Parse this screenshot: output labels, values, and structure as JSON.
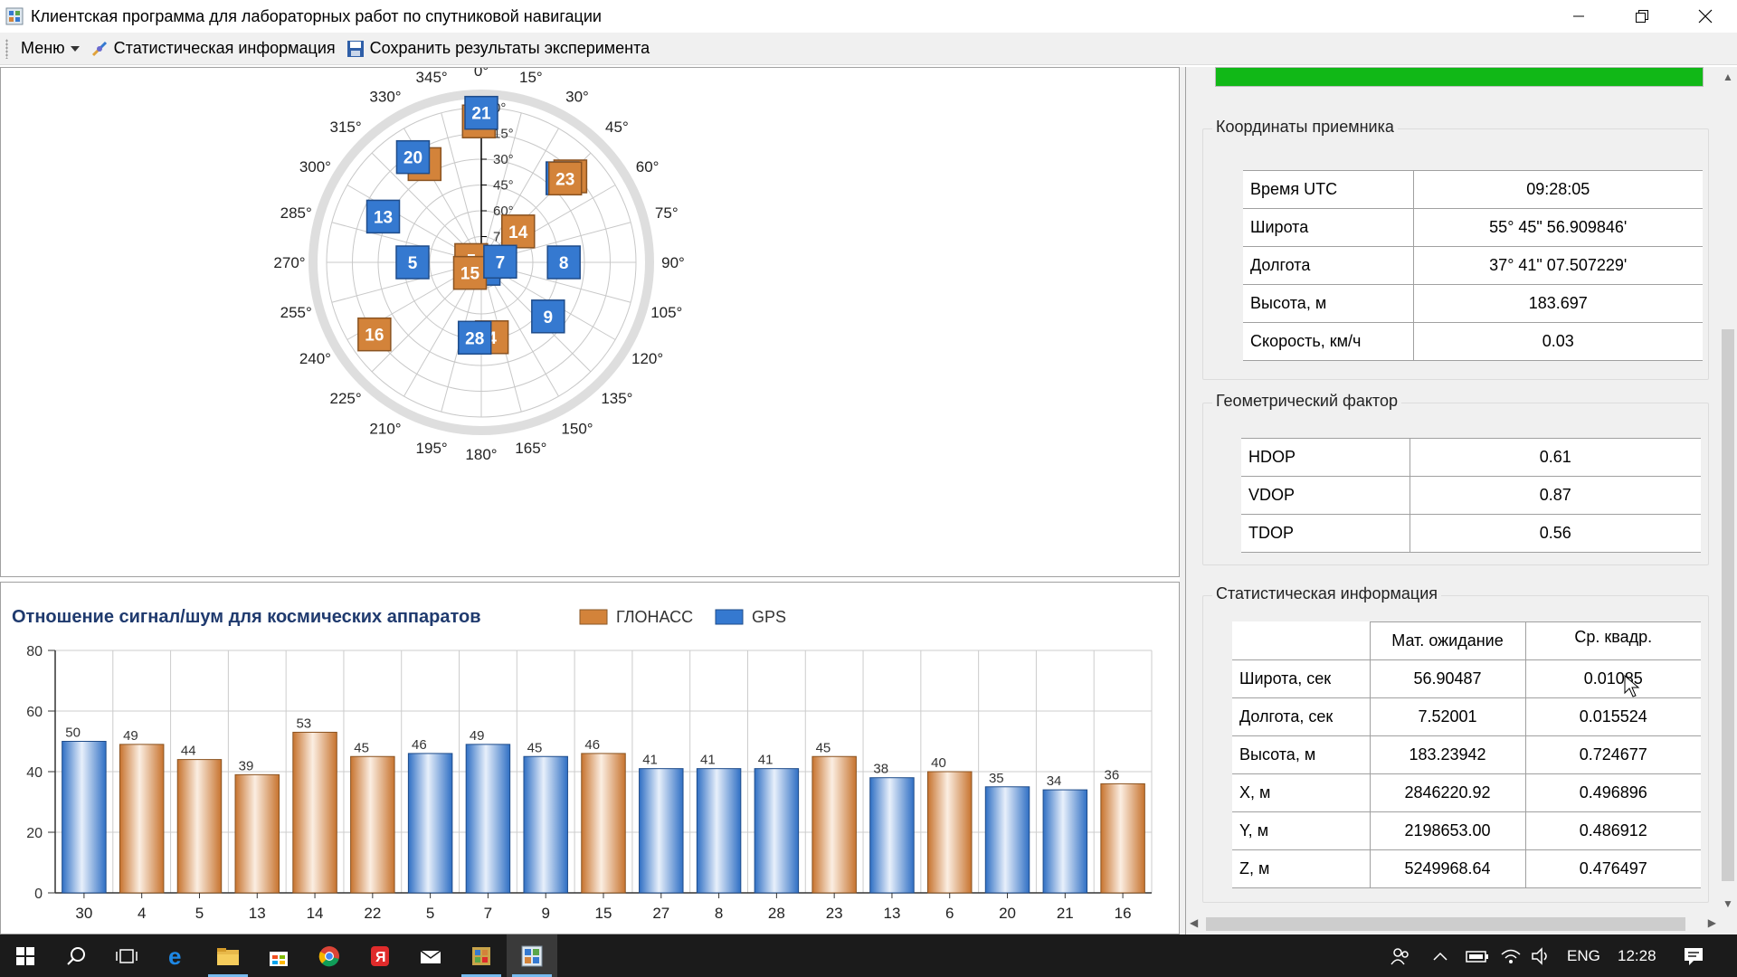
{
  "window": {
    "title": "Клиентская программа для лабораторных работ по спутниковой навигации"
  },
  "toolbar": {
    "menu_label": "Меню",
    "stats_label": "Статистическая информация",
    "save_label": "Сохранить результаты эксперимента"
  },
  "skyplot": {
    "azimuth_labels": [
      "0°",
      "15°",
      "30°",
      "45°",
      "60°",
      "75°",
      "90°",
      "105°",
      "120°",
      "135°",
      "150°",
      "165°",
      "180°",
      "195°",
      "210°",
      "225°",
      "240°",
      "255°",
      "270°",
      "285°",
      "300°",
      "315°",
      "330°",
      "345°"
    ],
    "elevation_labels": [
      "0°",
      "15°",
      "30°",
      "45°",
      "60°",
      "75°",
      "90°"
    ],
    "satellites": [
      {
        "id": "22",
        "system": "glonass",
        "az": 359,
        "el": 8
      },
      {
        "id": "21",
        "system": "gps",
        "az": 0,
        "el": 3
      },
      {
        "id": "6",
        "system": "glonass",
        "az": 330,
        "el": 24
      },
      {
        "id": "20",
        "system": "gps",
        "az": 327,
        "el": 17
      },
      {
        "id": "3",
        "system": "glonass",
        "az": 46,
        "el": 18
      },
      {
        "id": "23",
        "system": "gps",
        "az": 44,
        "el": 22
      },
      {
        "id": "23",
        "system": "glonass",
        "az": 45,
        "el": 21
      },
      {
        "id": "13",
        "system": "gps",
        "az": 295,
        "el": 27
      },
      {
        "id": "14",
        "system": "glonass",
        "az": 50,
        "el": 62
      },
      {
        "id": "5",
        "system": "gps",
        "az": 270,
        "el": 50
      },
      {
        "id": "0",
        "system": "gps",
        "az": 160,
        "el": 86
      },
      {
        "id": "5",
        "system": "glonass",
        "az": 283,
        "el": 84
      },
      {
        "id": "15",
        "system": "glonass",
        "az": 227,
        "el": 81
      },
      {
        "id": "7",
        "system": "gps",
        "az": 88,
        "el": 79
      },
      {
        "id": "8",
        "system": "gps",
        "az": 90,
        "el": 42
      },
      {
        "id": "9",
        "system": "gps",
        "az": 129,
        "el": 40
      },
      {
        "id": "16",
        "system": "glonass",
        "az": 236,
        "el": 15
      },
      {
        "id": "4",
        "system": "glonass",
        "az": 172,
        "el": 46
      },
      {
        "id": "28",
        "system": "gps",
        "az": 185,
        "el": 46
      }
    ]
  },
  "snr_chart": {
    "title": "Отношение сигнал/шум для космических аппаратов",
    "legend": [
      {
        "name": "ГЛОНАСС",
        "color": "#d3833a"
      },
      {
        "name": "GPS",
        "color": "#3579d0"
      }
    ]
  },
  "chart_data": {
    "type": "bar",
    "title": "Отношение сигнал/шум для космических аппаратов",
    "categories": [
      "30",
      "4",
      "5",
      "13",
      "14",
      "22",
      "5",
      "7",
      "9",
      "15",
      "27",
      "8",
      "28",
      "23",
      "13",
      "6",
      "20",
      "21",
      "16"
    ],
    "values": [
      50,
      49,
      44,
      39,
      53,
      45,
      46,
      49,
      45,
      46,
      41,
      41,
      41,
      45,
      38,
      40,
      35,
      34,
      36
    ],
    "systems": [
      "GPS",
      "ГЛОНАСС",
      "ГЛОНАСС",
      "ГЛОНАСС",
      "ГЛОНАСС",
      "ГЛОНАСС",
      "GPS",
      "GPS",
      "GPS",
      "ГЛОНАСС",
      "GPS",
      "GPS",
      "GPS",
      "ГЛОНАСС",
      "GPS",
      "ГЛОНАСС",
      "GPS",
      "GPS",
      "ГЛОНАСС"
    ],
    "yticks": [
      "0",
      "20",
      "40",
      "60",
      "80"
    ],
    "ylim": [
      0,
      80
    ],
    "legend_position": "top",
    "grid": true
  },
  "receiver": {
    "group_title": "Координаты приемника",
    "rows": [
      {
        "label": "Время UTC",
        "value": "09:28:05"
      },
      {
        "label": "Широта",
        "value": "55°  45\"  56.909846'"
      },
      {
        "label": "Долгота",
        "value": "37°  41\"  07.507229'"
      },
      {
        "label": "Высота, м",
        "value": "183.697"
      },
      {
        "label": "Скорость, км/ч",
        "value": "0.03"
      }
    ]
  },
  "geometry": {
    "group_title": "Геометрический фактор",
    "rows": [
      {
        "label": "HDOP",
        "value": "0.61"
      },
      {
        "label": "VDOP",
        "value": "0.87"
      },
      {
        "label": "TDOP",
        "value": "0.56"
      }
    ]
  },
  "statistics": {
    "group_title": "Статистическая информация",
    "col_mean": "Мат. ожидание",
    "col_rms": "Ср. квадр.",
    "rows": [
      {
        "label": "Широта, сек",
        "mean": "56.90487",
        "rms": "0.01085"
      },
      {
        "label": "Долгота, сек",
        "mean": "7.52001",
        "rms": "0.015524"
      },
      {
        "label": "Высота, м",
        "mean": "183.23942",
        "rms": "0.724677"
      },
      {
        "label": "X, м",
        "mean": "2846220.92",
        "rms": "0.496896"
      },
      {
        "label": "Y, м",
        "mean": "2198653.00",
        "rms": "0.486912"
      },
      {
        "label": "Z, м",
        "mean": "5249968.64",
        "rms": "0.476497"
      }
    ]
  },
  "progress": {
    "value": 1.0,
    "color": "#11b817"
  },
  "taskbar": {
    "language": "ENG",
    "time": "12:28"
  }
}
